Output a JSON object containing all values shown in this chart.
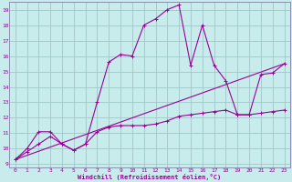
{
  "xlabel": "Windchill (Refroidissement éolien,°C)",
  "bg_color": "#c8ecec",
  "grid_color": "#a0c8c8",
  "line_color": "#990099",
  "spine_color": "#8080a0",
  "xlim": [
    -0.5,
    23.5
  ],
  "ylim": [
    8.8,
    19.5
  ],
  "xticks": [
    0,
    1,
    2,
    3,
    4,
    5,
    6,
    7,
    8,
    9,
    10,
    11,
    12,
    13,
    14,
    15,
    16,
    17,
    18,
    19,
    20,
    21,
    22,
    23
  ],
  "yticks": [
    9,
    10,
    11,
    12,
    13,
    14,
    15,
    16,
    17,
    18,
    19
  ],
  "curve1_x": [
    0,
    1,
    2,
    3,
    4,
    5,
    6,
    7,
    8,
    9,
    10,
    11,
    12,
    13,
    14,
    15,
    16,
    17,
    18,
    19,
    20,
    21,
    22,
    23
  ],
  "curve1_y": [
    9.3,
    10.0,
    11.1,
    11.1,
    10.3,
    9.9,
    10.3,
    13.0,
    15.6,
    16.1,
    16.0,
    18.0,
    18.4,
    19.0,
    19.3,
    15.4,
    18.0,
    15.4,
    14.4,
    12.2,
    12.2,
    14.8,
    14.9,
    15.5
  ],
  "curve2_x": [
    0,
    23
  ],
  "curve2_y": [
    9.3,
    15.5
  ],
  "curve3_x": [
    0,
    1,
    2,
    3,
    4,
    5,
    6,
    7,
    8,
    9,
    10,
    11,
    12,
    13,
    14,
    15,
    16,
    17,
    18,
    19,
    20,
    21,
    22,
    23
  ],
  "curve3_y": [
    9.3,
    9.8,
    10.3,
    10.8,
    10.3,
    9.9,
    10.3,
    11.1,
    11.4,
    11.5,
    11.5,
    11.5,
    11.6,
    11.8,
    12.1,
    12.2,
    12.3,
    12.4,
    12.5,
    12.2,
    12.2,
    12.3,
    12.4,
    12.5
  ]
}
